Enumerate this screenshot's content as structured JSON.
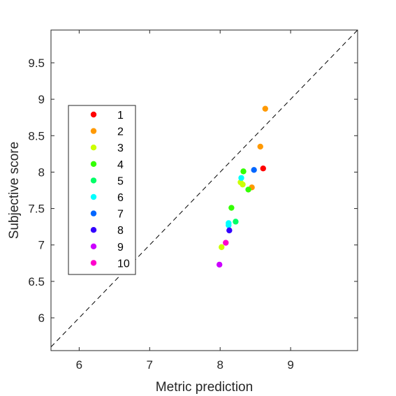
{
  "chart_data": {
    "type": "scatter",
    "title": "",
    "xlabel": "Metric prediction",
    "ylabel": "Subjective score",
    "xlim": [
      5.6,
      9.95
    ],
    "ylim": [
      5.55,
      9.95
    ],
    "xticks": [
      6,
      7,
      8,
      9
    ],
    "yticks": [
      6,
      6.5,
      7,
      7.5,
      8,
      8.5,
      9,
      9.5
    ],
    "xtick_labels": [
      "6",
      "7",
      "8",
      "9"
    ],
    "ytick_labels": [
      "6",
      "6.5",
      "7",
      "7.5",
      "8",
      "8.5",
      "9",
      "9.5"
    ],
    "grid": false,
    "reference_line": "identity (dashed)",
    "legend_position": "left",
    "series": [
      {
        "name": "1",
        "color": "#ff0000",
        "points": [
          [
            8.61,
            8.05
          ]
        ]
      },
      {
        "name": "2",
        "color": "#ff9900",
        "points": [
          [
            8.64,
            8.87
          ],
          [
            8.57,
            8.35
          ],
          [
            8.45,
            7.79
          ]
        ]
      },
      {
        "name": "3",
        "color": "#ccff00",
        "points": [
          [
            8.29,
            7.86
          ],
          [
            8.32,
            7.83
          ],
          [
            8.02,
            6.97
          ]
        ]
      },
      {
        "name": "4",
        "color": "#33ff00",
        "points": [
          [
            8.4,
            7.76
          ],
          [
            8.16,
            7.51
          ],
          [
            8.33,
            8.01
          ]
        ]
      },
      {
        "name": "5",
        "color": "#00ff66",
        "points": [
          [
            8.22,
            7.32
          ]
        ]
      },
      {
        "name": "6",
        "color": "#00ffff",
        "points": [
          [
            8.3,
            7.92
          ],
          [
            8.12,
            7.3
          ],
          [
            8.12,
            7.27
          ]
        ]
      },
      {
        "name": "7",
        "color": "#0066ff",
        "points": [
          [
            8.48,
            8.03
          ]
        ]
      },
      {
        "name": "8",
        "color": "#3300ff",
        "points": [
          [
            8.13,
            7.2
          ]
        ]
      },
      {
        "name": "9",
        "color": "#cc00ff",
        "points": [
          [
            7.99,
            6.73
          ]
        ]
      },
      {
        "name": "10",
        "color": "#ff00cc",
        "points": [
          [
            8.08,
            7.03
          ]
        ]
      }
    ]
  }
}
